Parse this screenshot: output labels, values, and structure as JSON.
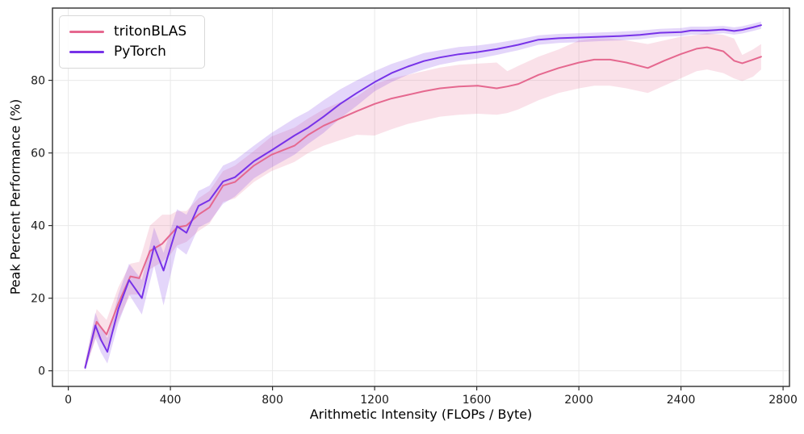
{
  "chart_data": {
    "type": "line",
    "title": "",
    "xlabel": "Arithmetic Intensity (FLOPs / Byte)",
    "ylabel": "Peak Percent Performance (%)",
    "xlim": [
      -62,
      2825
    ],
    "ylim": [
      -4.3,
      99.9
    ],
    "xticks": [
      0,
      400,
      800,
      1200,
      1600,
      2000,
      2400,
      2800
    ],
    "yticks": [
      0,
      20,
      40,
      60,
      80
    ],
    "grid": true,
    "legend": {
      "position": "upper left",
      "entries": [
        "tritonBLAS",
        "PyTorch"
      ]
    },
    "series": [
      {
        "name": "tritonBLAS",
        "color": "#e5688f",
        "band_opacity": 0.2,
        "x": [
          66,
          111,
          150,
          196,
          243,
          278,
          320,
          368,
          400,
          426,
          463,
          510,
          553,
          606,
          653,
          727,
          796,
          886,
          940,
          1000,
          1065,
          1130,
          1200,
          1266,
          1330,
          1393,
          1456,
          1530,
          1604,
          1678,
          1720,
          1763,
          1842,
          1921,
          2001,
          2060,
          2122,
          2186,
          2270,
          2334,
          2398,
          2461,
          2502,
          2566,
          2608,
          2640,
          2682,
          2714
        ],
        "y": [
          1,
          13.5,
          10,
          18.5,
          26,
          25.5,
          33,
          35,
          37.5,
          39.5,
          40,
          43,
          45,
          51,
          52,
          56.5,
          59.5,
          62,
          65,
          67.5,
          69.5,
          71.5,
          73.5,
          75,
          76,
          77,
          77.8,
          78.3,
          78.5,
          77.8,
          78.3,
          79,
          81.5,
          83.4,
          84.9,
          85.7,
          85.7,
          84.9,
          83.4,
          85.4,
          87.2,
          88.7,
          89.1,
          88,
          85.4,
          84.7,
          85.7,
          86.5
        ],
        "band_lo": [
          0.3,
          9.5,
          6,
          14,
          21,
          21,
          28,
          30,
          32,
          34.5,
          35.5,
          38.5,
          40.5,
          46.5,
          47.5,
          52,
          55,
          57.5,
          60,
          62,
          63.5,
          65,
          64.8,
          66.5,
          68,
          69,
          70,
          70.5,
          70.8,
          70.5,
          71,
          72,
          74.5,
          76.5,
          77.8,
          78.5,
          78.5,
          77.8,
          76.5,
          78.5,
          80.5,
          82.5,
          83,
          82,
          80.5,
          79.8,
          81,
          83
        ],
        "band_hi": [
          2.5,
          17,
          14,
          23,
          29.5,
          30,
          40,
          43,
          43,
          44,
          44,
          47.5,
          49.5,
          55,
          56.5,
          60.5,
          64.5,
          67,
          69.5,
          72,
          74,
          75.5,
          79,
          80.5,
          81.5,
          82.5,
          83.5,
          84.3,
          84.6,
          84.9,
          82.5,
          84,
          86.5,
          88.5,
          91,
          91.5,
          91.5,
          91,
          90,
          91,
          92,
          92.5,
          93,
          92.5,
          91.5,
          87,
          88.5,
          90
        ]
      },
      {
        "name": "PyTorch",
        "color": "#7732e8",
        "band_opacity": 0.2,
        "x": [
          66,
          106,
          128,
          153,
          196,
          238,
          288,
          336,
          373,
          426,
          463,
          510,
          553,
          606,
          653,
          727,
          796,
          886,
          940,
          1000,
          1065,
          1130,
          1200,
          1266,
          1330,
          1393,
          1456,
          1530,
          1604,
          1678,
          1763,
          1842,
          1921,
          2001,
          2080,
          2159,
          2239,
          2318,
          2402,
          2439,
          2502,
          2566,
          2608,
          2640,
          2682,
          2714
        ],
        "y": [
          0.8,
          12.5,
          8.5,
          5.2,
          17,
          25,
          20,
          34.3,
          27.6,
          39.8,
          38,
          45.4,
          47,
          52.1,
          53.3,
          57.7,
          60.7,
          64.8,
          67,
          70,
          73.5,
          76.5,
          79.5,
          82,
          83.8,
          85.3,
          86.3,
          87.2,
          87.8,
          88.6,
          89.8,
          91.2,
          91.6,
          91.8,
          92,
          92.2,
          92.5,
          93.1,
          93.3,
          93.7,
          93.7,
          94,
          93.6,
          93.9,
          94.6,
          95.2
        ],
        "band_lo": [
          0,
          9,
          5,
          2,
          13,
          21,
          15.5,
          29,
          18,
          34,
          32,
          39.5,
          41,
          46,
          48,
          53,
          56,
          59.5,
          62.5,
          65.5,
          69.5,
          73,
          77,
          79.5,
          81.5,
          83,
          84.3,
          85.3,
          86,
          87,
          88.3,
          89.8,
          90.3,
          90.5,
          90.8,
          91,
          91.3,
          92,
          92.2,
          92.6,
          92.6,
          93,
          92.6,
          92.9,
          93.6,
          94.2
        ],
        "band_hi": [
          2,
          16,
          12,
          9,
          21,
          29.5,
          25,
          39.5,
          32.5,
          44.5,
          43,
          49.5,
          51,
          56.5,
          58,
          62,
          65.5,
          69.5,
          71.5,
          74.5,
          77.5,
          80,
          82.5,
          84.5,
          86,
          87.5,
          88.3,
          89.2,
          89.6,
          90.3,
          91.3,
          92.4,
          92.8,
          93,
          93.2,
          93.4,
          93.7,
          94.2,
          94.4,
          94.8,
          94.8,
          95,
          94.6,
          94.9,
          95.6,
          96.2
        ]
      }
    ]
  },
  "style": {
    "background": "#ffffff",
    "grid_color": "#e9e9e9",
    "spine_color": "#2e2e2e",
    "tick_label_color": "#1a1a1a"
  }
}
